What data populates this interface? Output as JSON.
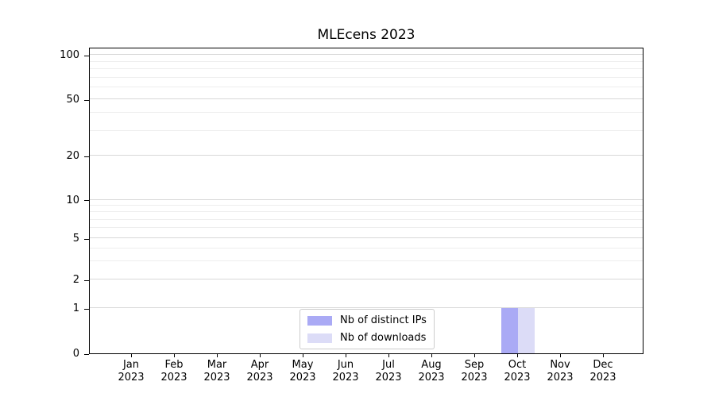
{
  "chart_data": {
    "type": "bar",
    "title": "MLEcens 2023",
    "categories": [
      "Jan",
      "Feb",
      "Mar",
      "Apr",
      "May",
      "Jun",
      "Jul",
      "Aug",
      "Sep",
      "Oct",
      "Nov",
      "Dec"
    ],
    "x_tick_year": "2023",
    "series": [
      {
        "name": "Nb of distinct IPs",
        "color": "#aaaaf5",
        "values": [
          0,
          0,
          0,
          0,
          0,
          0,
          0,
          0,
          0,
          1,
          0,
          0
        ]
      },
      {
        "name": "Nb of downloads",
        "color": "#dcdcf7",
        "values": [
          0,
          0,
          0,
          0,
          0,
          0,
          0,
          0,
          0,
          1,
          0,
          0
        ]
      }
    ],
    "y_ticks": [
      0,
      1,
      2,
      5,
      10,
      20,
      50,
      100
    ],
    "y_minor_gridlines": [
      3,
      4,
      6,
      7,
      8,
      9,
      30,
      40,
      60,
      70,
      80,
      90
    ],
    "ylim": [
      0,
      113
    ],
    "yscale": "log above 1, linear segment from 0 to 1",
    "grid": "horizontal",
    "legend": {
      "position": "lower-center",
      "entries": [
        "Nb of distinct IPs",
        "Nb of downloads"
      ]
    }
  },
  "colors": {
    "axis": "#000000",
    "text": "#000000",
    "grid_major": "#d8d8d8",
    "grid_minor": "#eeeeee",
    "legend_border": "#cccccc",
    "background": "#ffffff"
  }
}
